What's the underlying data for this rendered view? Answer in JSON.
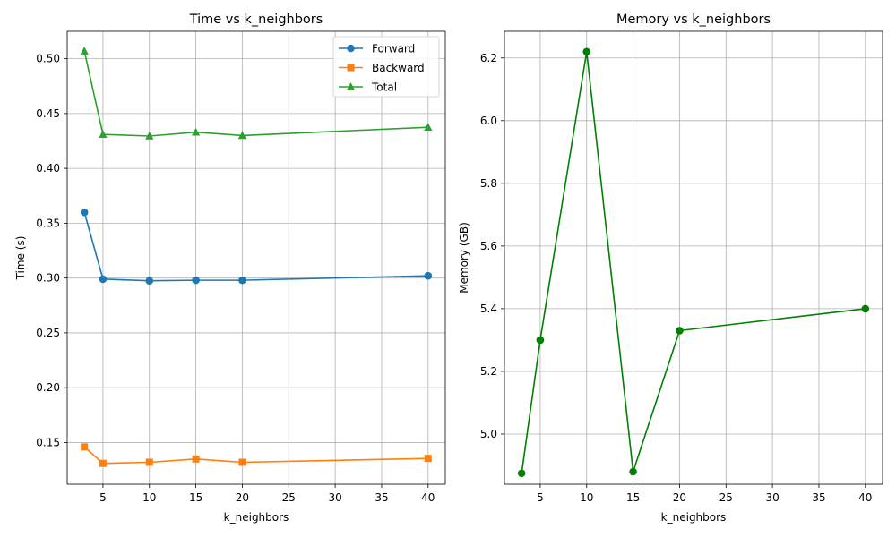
{
  "chart_data": [
    {
      "type": "line",
      "title": "Time vs k_neighbors",
      "xlabel": "k_neighbors",
      "ylabel": "Time (s)",
      "x": [
        3,
        5,
        10,
        15,
        20,
        40
      ],
      "xlim": [
        1.15,
        41.85
      ],
      "ylim": [
        0.112,
        0.525
      ],
      "xticks": [
        5,
        10,
        15,
        20,
        25,
        30,
        35,
        40
      ],
      "yticks": [
        0.15,
        0.2,
        0.25,
        0.3,
        0.35,
        0.4,
        0.45,
        0.5
      ],
      "ytick_labels": [
        "0.15",
        "0.20",
        "0.25",
        "0.30",
        "0.35",
        "0.40",
        "0.45",
        "0.50"
      ],
      "grid": true,
      "legend": "top-right",
      "series": [
        {
          "name": "Forward",
          "values": [
            0.36,
            0.299,
            0.2975,
            0.298,
            0.298,
            0.302
          ],
          "color": "#1f77b4",
          "marker": "circle"
        },
        {
          "name": "Backward",
          "values": [
            0.146,
            0.131,
            0.132,
            0.135,
            0.132,
            0.1355
          ],
          "color": "#ff7f0e",
          "marker": "square"
        },
        {
          "name": "Total",
          "values": [
            0.507,
            0.431,
            0.4295,
            0.433,
            0.43,
            0.4375
          ],
          "color": "#2ca02c",
          "marker": "triangle"
        }
      ]
    },
    {
      "type": "line",
      "title": "Memory vs k_neighbors",
      "xlabel": "k_neighbors",
      "ylabel": "Memory (GB)",
      "x": [
        3,
        5,
        10,
        15,
        20,
        40
      ],
      "xlim": [
        1.15,
        41.85
      ],
      "ylim": [
        4.84,
        6.285
      ],
      "xticks": [
        5,
        10,
        15,
        20,
        25,
        30,
        35,
        40
      ],
      "yticks": [
        5.0,
        5.2,
        5.4,
        5.6,
        5.8,
        6.0,
        6.2
      ],
      "ytick_labels": [
        "5.0",
        "5.2",
        "5.4",
        "5.6",
        "5.8",
        "6.0",
        "6.2"
      ],
      "grid": true,
      "series": [
        {
          "values": [
            4.875,
            5.3,
            6.22,
            4.88,
            5.33,
            5.4
          ],
          "color": "#008000",
          "marker": "circle"
        }
      ]
    }
  ]
}
